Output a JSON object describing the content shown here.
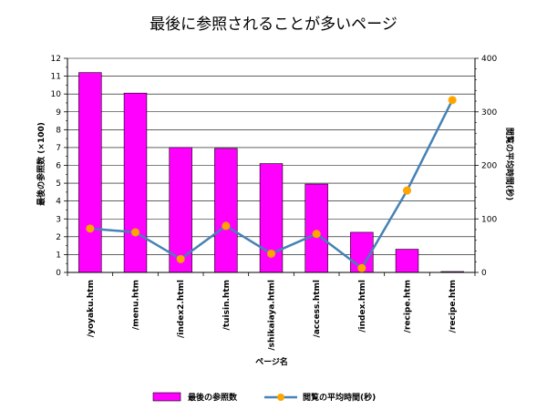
{
  "chart_data": {
    "type": "bar",
    "title": "最後に参照されることが多いページ",
    "xlabel": "ページ名",
    "ylabel": "最後の参照数 (×100)",
    "y2label": "閲覧の平均時間(秒)",
    "categories": [
      "/yoyaku.htm",
      "/menu.htm",
      "/index2.html",
      "/tuisin.htm",
      "/shikaiaya.html",
      "/access.html",
      "/index.html",
      "/recipe.htm",
      "/recipe.htm"
    ],
    "ylim": [
      0,
      12
    ],
    "y2lim": [
      0,
      400
    ],
    "yticks": [
      0,
      1,
      2,
      3,
      4,
      5,
      6,
      7,
      8,
      9,
      10,
      11,
      12
    ],
    "y2ticks": [
      0,
      100,
      200,
      300,
      400
    ],
    "grid": true,
    "legend_position": "bottom",
    "series": [
      {
        "name": "最後の参照数",
        "type": "bar",
        "axis": "left",
        "color": "#ff00ff",
        "values": [
          11.2,
          10.05,
          7.0,
          6.95,
          6.1,
          4.95,
          2.25,
          1.3,
          0.05
        ]
      },
      {
        "name": "閲覧の平均時間(秒)",
        "type": "line",
        "axis": "right",
        "color": "#4682b4",
        "marker_color": "#ffa500",
        "values": [
          82,
          75,
          25,
          87,
          35,
          72,
          8,
          153,
          322
        ]
      }
    ]
  }
}
